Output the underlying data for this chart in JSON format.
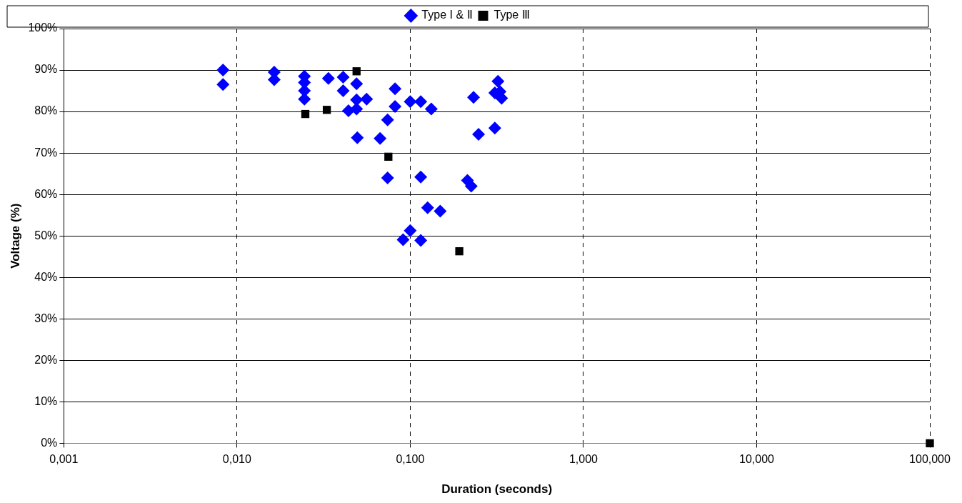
{
  "chart_data": {
    "type": "scatter",
    "xlabel": "Duration (seconds)",
    "ylabel": "Voltage (%)",
    "log": "x",
    "grid": true,
    "legend": "top",
    "xlim": [
      0.001,
      100
    ],
    "xticks": [
      {
        "value": 0.001,
        "label": "0,001"
      },
      {
        "value": 0.01,
        "label": "0,010"
      },
      {
        "value": 0.1,
        "label": "0,100"
      },
      {
        "value": 1,
        "label": "1,000"
      },
      {
        "value": 10,
        "label": "10,000"
      },
      {
        "value": 100,
        "label": "100,000"
      }
    ],
    "ylim": [
      0,
      100
    ],
    "yticks": [
      {
        "value": 0,
        "label": "0%"
      },
      {
        "value": 10,
        "label": "10%"
      },
      {
        "value": 20,
        "label": "20%"
      },
      {
        "value": 30,
        "label": "30%"
      },
      {
        "value": 40,
        "label": "40%"
      },
      {
        "value": 50,
        "label": "50%"
      },
      {
        "value": 60,
        "label": "60%"
      },
      {
        "value": 70,
        "label": "70%"
      },
      {
        "value": 80,
        "label": "80%"
      },
      {
        "value": 90,
        "label": "90%"
      },
      {
        "value": 100,
        "label": "100%"
      }
    ],
    "series": [
      {
        "name": "Type I & Ⅱ",
        "color": "#0000ff",
        "marker": "diamond",
        "x": [
          0.0083,
          0.0083,
          0.0164,
          0.0164,
          0.0245,
          0.0245,
          0.0245,
          0.0245,
          0.0337,
          0.041,
          0.041,
          0.044,
          0.049,
          0.049,
          0.049,
          0.0495,
          0.056,
          0.0817,
          0.0817,
          0.074,
          0.067,
          0.074,
          0.1,
          0.115,
          0.1323,
          0.115,
          0.126,
          0.149,
          0.1,
          0.091,
          0.115,
          0.232,
          0.248,
          0.308,
          0.321,
          0.308,
          0.337,
          0.33,
          0.214,
          0.225
        ],
        "values": [
          90,
          86.5,
          89.5,
          87.7,
          88.5,
          87,
          85,
          83,
          88,
          88.3,
          85,
          80.2,
          86.7,
          82.8,
          80.6,
          73.7,
          83,
          85.5,
          81.2,
          78,
          73.5,
          64,
          82.4,
          82.4,
          80.6,
          64.2,
          56.8,
          56,
          51.3,
          49.1,
          48.9,
          83.4,
          74.5,
          76,
          87.3,
          84.5,
          83.2,
          84.8,
          63.4,
          62
        ]
      },
      {
        "name": "Type Ⅲ",
        "color": "#000000",
        "marker": "square",
        "x": [
          0.049,
          0.0248,
          0.033,
          0.0748,
          0.192,
          100
        ],
        "values": [
          89.7,
          79.4,
          80.4,
          69.1,
          46.3,
          0
        ]
      }
    ]
  }
}
